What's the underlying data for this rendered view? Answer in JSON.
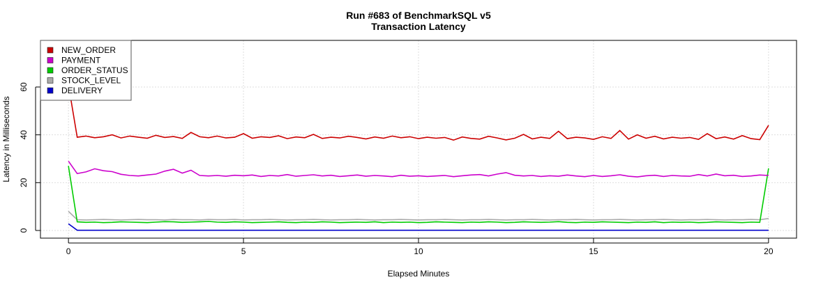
{
  "chart_data": {
    "type": "line",
    "title": "Run #683 of BenchmarkSQL v5",
    "subtitle": "Transaction Latency",
    "xlabel": "Elapsed Minutes",
    "ylabel": "Latency in Milliseconds",
    "xlim": [
      -0.8,
      20.8
    ],
    "ylim": [
      -3.2,
      79.5
    ],
    "x_range": [
      0,
      20
    ],
    "x_ticks": [
      0,
      5,
      10,
      15,
      20
    ],
    "x_tick_labels": [
      "0",
      "5",
      "10",
      "15",
      "20"
    ],
    "y_ticks": [
      0,
      20,
      40,
      60
    ],
    "y_tick_labels": [
      "0",
      "20",
      "40",
      "60"
    ],
    "grid": true,
    "legend_position": "top-left",
    "series": [
      {
        "name": "NEW_ORDER",
        "color": "#cc0000",
        "values": [
          61,
          39,
          39.5,
          38.8,
          39.2,
          40,
          38.7,
          39.5,
          39,
          38.6,
          39.8,
          38.9,
          39.3,
          38.5,
          41,
          39.2,
          38.8,
          39.5,
          38.7,
          39,
          40.5,
          38.6,
          39.2,
          38.9,
          39.6,
          38.4,
          39.1,
          38.8,
          40.2,
          38.5,
          39,
          38.7,
          39.4,
          38.9,
          38.3,
          39.1,
          38.6,
          39.5,
          38.8,
          39.2,
          38.4,
          39,
          38.6,
          38.9,
          37.8,
          39.1,
          38.5,
          38.2,
          39.4,
          38.7,
          37.9,
          38.6,
          40.2,
          38.3,
          39,
          38.5,
          41.5,
          38.4,
          39,
          38.7,
          38.1,
          39.2,
          38.5,
          41.8,
          38.2,
          40,
          38.6,
          39.4,
          38.3,
          39,
          38.6,
          38.9,
          38.1,
          40.5,
          38.4,
          39.1,
          38.2,
          39.7,
          38.4,
          38,
          44
        ]
      },
      {
        "name": "PAYMENT",
        "color": "#cc00cc",
        "values": [
          29,
          23.8,
          24.5,
          25.8,
          25,
          24.6,
          23.5,
          23,
          22.8,
          23.2,
          23.6,
          24.8,
          25.6,
          24,
          25.2,
          23,
          22.8,
          23,
          22.7,
          23.1,
          22.9,
          23.2,
          22.6,
          23,
          22.8,
          23.4,
          22.7,
          23,
          23.3,
          22.8,
          23.1,
          22.6,
          22.9,
          23.2,
          22.7,
          23,
          22.8,
          22.5,
          23.1,
          22.7,
          22.9,
          22.6,
          22.8,
          23,
          22.5,
          22.9,
          23.2,
          23.4,
          22.8,
          23.6,
          24.2,
          23.1,
          22.8,
          23,
          22.6,
          22.9,
          22.7,
          23.2,
          22.8,
          22.5,
          23,
          22.6,
          22.9,
          23.3,
          22.7,
          22.4,
          22.9,
          23.1,
          22.6,
          23,
          22.8,
          22.7,
          23.4,
          22.8,
          23.6,
          22.9,
          23.1,
          22.6,
          22.8,
          23.2,
          23
        ]
      },
      {
        "name": "ORDER_STATUS",
        "color": "#00cc00",
        "values": [
          27,
          3.6,
          3.4,
          3.5,
          3.3,
          3.4,
          3.6,
          3.5,
          3.4,
          3.3,
          3.5,
          3.7,
          3.6,
          3.4,
          3.5,
          3.6,
          3.8,
          3.5,
          3.4,
          3.6,
          3.5,
          3.3,
          3.4,
          3.5,
          3.6,
          3.4,
          3.3,
          3.5,
          3.4,
          3.6,
          3.5,
          3.3,
          3.4,
          3.5,
          3.4,
          3.6,
          3.3,
          3.5,
          3.4,
          3.5,
          3.3,
          3.4,
          3.6,
          3.5,
          3.4,
          3.3,
          3.5,
          3.4,
          3.6,
          3.5,
          3.3,
          3.4,
          3.6,
          3.5,
          3.4,
          3.5,
          3.7,
          3.4,
          3.3,
          3.5,
          3.4,
          3.6,
          3.5,
          3.4,
          3.3,
          3.5,
          3.4,
          3.6,
          3.3,
          3.5,
          3.4,
          3.5,
          3.3,
          3.4,
          3.6,
          3.5,
          3.4,
          3.3,
          3.5,
          3.4,
          26
        ]
      },
      {
        "name": "STOCK_LEVEL",
        "color": "#aaaaaa",
        "values": [
          8,
          4.5,
          4.4,
          4.5,
          4.6,
          4.5,
          4.4,
          4.5,
          4.6,
          4.5,
          4.5,
          4.4,
          4.6,
          4.5,
          4.5,
          4.4,
          4.6,
          4.5,
          4.5,
          4.6,
          4.4,
          4.5,
          4.5,
          4.6,
          4.5,
          4.4,
          4.5,
          4.5,
          4.6,
          4.5,
          4.4,
          4.5,
          4.5,
          4.6,
          4.5,
          4.4,
          4.5,
          4.5,
          4.6,
          4.5,
          4.4,
          4.5,
          4.5,
          4.6,
          4.5,
          4.4,
          4.5,
          4.5,
          4.6,
          4.5,
          4.4,
          4.5,
          4.5,
          4.6,
          4.5,
          4.4,
          4.5,
          4.5,
          4.6,
          4.5,
          4.4,
          4.5,
          4.5,
          4.6,
          4.5,
          4.4,
          4.5,
          4.5,
          4.6,
          4.5,
          4.4,
          4.5,
          4.5,
          4.6,
          4.5,
          4.4,
          4.5,
          4.5,
          4.6,
          4.5,
          5
        ]
      },
      {
        "name": "DELIVERY",
        "color": "#0000cc",
        "values": [
          2.8,
          0.1,
          0.1,
          0.1,
          0.1,
          0.1,
          0.1,
          0.1,
          0.1,
          0.1,
          0.1,
          0.1,
          0.1,
          0.1,
          0.1,
          0.1,
          0.1,
          0.1,
          0.1,
          0.1,
          0.1,
          0.1,
          0.1,
          0.1,
          0.1,
          0.1,
          0.1,
          0.1,
          0.1,
          0.1,
          0.1,
          0.1,
          0.1,
          0.1,
          0.1,
          0.1,
          0.1,
          0.1,
          0.1,
          0.1,
          0.1,
          0.1,
          0.1,
          0.1,
          0.1,
          0.1,
          0.1,
          0.1,
          0.1,
          0.1,
          0.1,
          0.1,
          0.1,
          0.1,
          0.1,
          0.1,
          0.1,
          0.1,
          0.1,
          0.1,
          0.1,
          0.1,
          0.1,
          0.1,
          0.1,
          0.1,
          0.1,
          0.1,
          0.1,
          0.1,
          0.1,
          0.1,
          0.1,
          0.1,
          0.1,
          0.1,
          0.1,
          0.1,
          0.1,
          0.1,
          0.1
        ]
      }
    ]
  }
}
